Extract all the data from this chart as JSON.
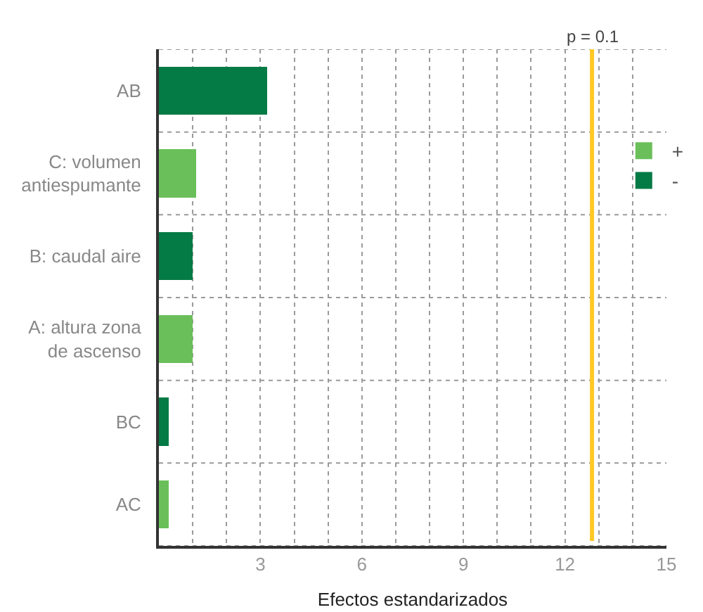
{
  "chart_data": {
    "type": "bar",
    "orientation": "horizontal",
    "stacked": true,
    "xlabel": "Efectos estandarizados",
    "categories": [
      "AB",
      "C: volumen antiespumante",
      "B: caudal aire",
      "A: altura zona de ascenso",
      "BC",
      "AC"
    ],
    "series": [
      {
        "name": "+",
        "color": "#6abf5a",
        "values": [
          null,
          1.1,
          null,
          1.0,
          null,
          0.3
        ]
      },
      {
        "name": "-",
        "color": "#047a45",
        "values": [
          3.2,
          null,
          1.0,
          null,
          0.3,
          null
        ]
      }
    ],
    "xlim": [
      0,
      15
    ],
    "xticks": [
      {
        "value": 1,
        "label": null
      },
      {
        "value": 2,
        "label": null
      },
      3,
      {
        "value": 4,
        "label": null
      },
      {
        "value": 5,
        "label": null
      },
      6,
      {
        "value": 7,
        "label": null
      },
      {
        "value": 8,
        "label": null
      },
      9,
      {
        "value": 10,
        "label": null
      },
      {
        "value": 11,
        "label": null
      },
      12,
      {
        "value": 13,
        "label": null
      },
      {
        "value": 14,
        "label": null
      },
      15
    ],
    "ref_lines": [
      {
        "axis": "x",
        "value": 12.8,
        "color": "#ffc828"
      }
    ],
    "annotations": [
      "p = 0.1"
    ],
    "grid": true,
    "legend": "top right"
  }
}
